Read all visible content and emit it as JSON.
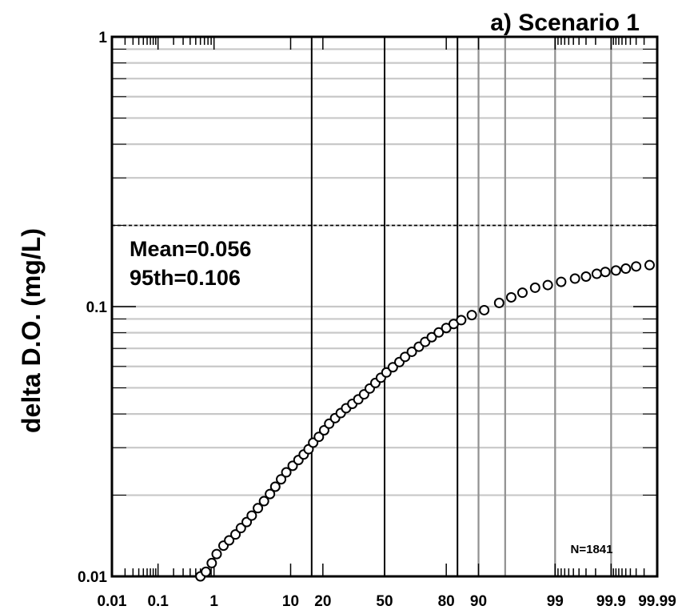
{
  "chart_data": {
    "type": "scatter",
    "title": "a) Scenario 1",
    "xlabel": "",
    "ylabel": "delta D.O. (mg/L)",
    "x_scale": "normal-probability (percent)",
    "y_scale": "log",
    "xlim": [
      0.01,
      99.99
    ],
    "ylim": [
      0.01,
      1
    ],
    "x_tick_labels": [
      "0.01",
      "0.1",
      "1",
      "10",
      "20",
      "50",
      "80",
      "90",
      "99",
      "99.9",
      "99.99"
    ],
    "y_tick_labels": [
      "1",
      "0.1",
      "0.01"
    ],
    "grid": true,
    "reference_line_y": 0.2,
    "annotations": {
      "mean": "Mean=0.056",
      "p95": "95th=0.106",
      "n": "N=1841"
    },
    "series": [
      {
        "marker": "open-circle",
        "x": [
          0.6,
          0.74,
          0.92,
          1.1,
          1.4,
          1.7,
          2.1,
          2.5,
          3.0,
          3.5,
          4.2,
          5.0,
          5.9,
          6.8,
          7.9,
          9.0,
          10.5,
          12.0,
          13.5,
          15.0,
          16.5,
          18.5,
          20.5,
          22.5,
          25,
          27.5,
          30,
          33,
          36,
          39,
          42,
          45,
          48,
          51,
          54.5,
          58,
          61,
          64.5,
          68,
          71,
          74,
          77,
          80,
          82.7,
          85.2,
          88.3,
          91.3,
          94.1,
          95.8,
          97,
          98,
          98.7,
          99.2,
          99.53,
          99.7,
          99.81,
          99.87,
          99.92,
          99.95,
          99.97,
          99.985
        ],
        "y": [
          0.01,
          0.0104,
          0.0112,
          0.0121,
          0.013,
          0.0136,
          0.0143,
          0.0151,
          0.0159,
          0.0168,
          0.0179,
          0.019,
          0.0202,
          0.0215,
          0.0229,
          0.0243,
          0.0257,
          0.027,
          0.0283,
          0.0296,
          0.0313,
          0.0329,
          0.0348,
          0.0368,
          0.0386,
          0.0403,
          0.042,
          0.0436,
          0.0453,
          0.0473,
          0.0497,
          0.0521,
          0.0545,
          0.057,
          0.0596,
          0.0623,
          0.0651,
          0.068,
          0.071,
          0.074,
          0.077,
          0.0802,
          0.0833,
          0.0862,
          0.0891,
          0.093,
          0.097,
          0.1032,
          0.1082,
          0.1126,
          0.1175,
          0.1202,
          0.1235,
          0.127,
          0.1292,
          0.1323,
          0.1344,
          0.1361,
          0.1383,
          0.1409,
          0.1425
        ]
      }
    ]
  }
}
